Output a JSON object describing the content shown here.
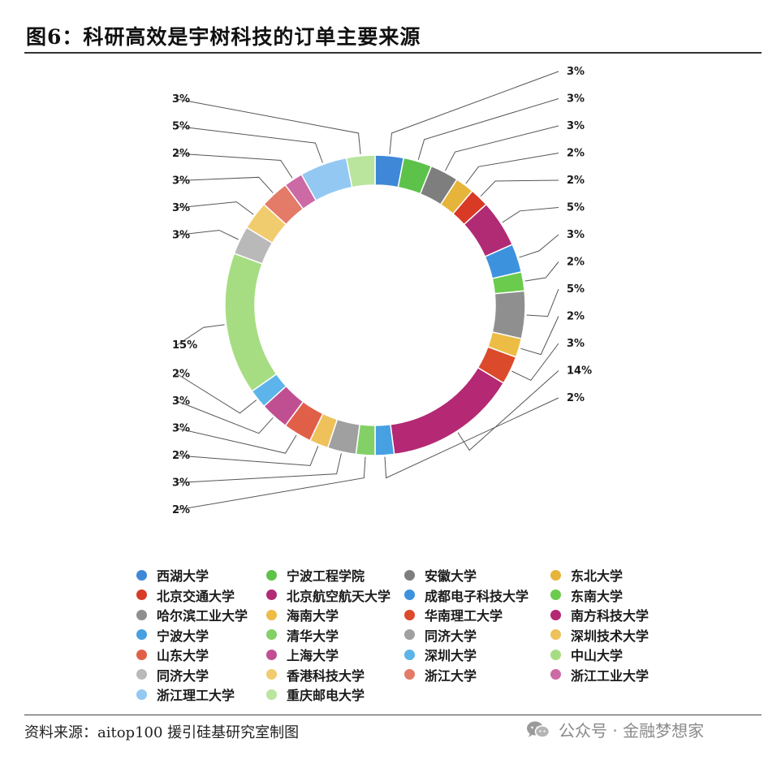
{
  "title": "图6：科研高效是宇树科技的订单主要来源",
  "source": "资料来源：aitop100 援引硅基研究室制图",
  "watermark": {
    "text": "公众号 · 金融梦想家",
    "icon": "wechat-icon"
  },
  "chart_data": {
    "type": "pie",
    "style": "donut",
    "slices": [
      {
        "label": "西湖大学",
        "value": 3,
        "text": "3%",
        "color": "#3f88d8"
      },
      {
        "label": "宁波工程学院",
        "value": 3,
        "text": "3%",
        "color": "#5cc24a"
      },
      {
        "label": "安徽大学",
        "value": 3,
        "text": "3%",
        "color": "#7e7e7e"
      },
      {
        "label": "东北大学",
        "value": 2,
        "text": "2%",
        "color": "#e6b43a"
      },
      {
        "label": "北京交通大学",
        "value": 2,
        "text": "2%",
        "color": "#d83a26"
      },
      {
        "label": "北京航空航天大学",
        "value": 5,
        "text": "5%",
        "color": "#b12a74"
      },
      {
        "label": "成都电子科技大学",
        "value": 3,
        "text": "3%",
        "color": "#3d92de"
      },
      {
        "label": "东南大学",
        "value": 2,
        "text": "2%",
        "color": "#6bcb4d"
      },
      {
        "label": "哈尔滨工业大学",
        "value": 5,
        "text": "5%",
        "color": "#8f8f8f"
      },
      {
        "label": "海南大学",
        "value": 2,
        "text": "2%",
        "color": "#ecbc45"
      },
      {
        "label": "华南理工大学",
        "value": 3,
        "text": "3%",
        "color": "#db4a2a"
      },
      {
        "label": "南方科技大学",
        "value": 14,
        "text": "14%",
        "color": "#b52873"
      },
      {
        "label": "宁波大学",
        "value": 2,
        "text": "2%",
        "color": "#46a0e2"
      },
      {
        "label": "清华大学",
        "value": 2,
        "text": "2%",
        "color": "#83d066"
      },
      {
        "label": "同济大学",
        "value": 3,
        "text": "3%",
        "color": "#a0a0a0"
      },
      {
        "label": "深圳技术大学",
        "value": 2,
        "text": "2%",
        "color": "#eec15a"
      },
      {
        "label": "山东大学",
        "value": 3,
        "text": "3%",
        "color": "#e06047"
      },
      {
        "label": "上海大学",
        "value": 3,
        "text": "3%",
        "color": "#c04f92"
      },
      {
        "label": "深圳大学",
        "value": 2,
        "text": "2%",
        "color": "#5cb4ea"
      },
      {
        "label": "中山大学",
        "value": 15,
        "text": "15%",
        "color": "#a6dd82"
      },
      {
        "label": "同济大学",
        "value": 3,
        "text": "3%",
        "color": "#b9b9b9"
      },
      {
        "label": "香港科技大学",
        "value": 3,
        "text": "3%",
        "color": "#f1cc6e"
      },
      {
        "label": "浙江大学",
        "value": 3,
        "text": "3%",
        "color": "#e47a68"
      },
      {
        "label": "浙江工业大学",
        "value": 2,
        "text": "2%",
        "color": "#cc6aa5"
      },
      {
        "label": "浙江理工大学",
        "value": 5,
        "text": "5%",
        "color": "#93c8f2"
      },
      {
        "label": "重庆邮电大学",
        "value": 3,
        "text": "3%",
        "color": "#b9e59d"
      }
    ],
    "legend_position": "bottom",
    "legend_columns": 4
  }
}
